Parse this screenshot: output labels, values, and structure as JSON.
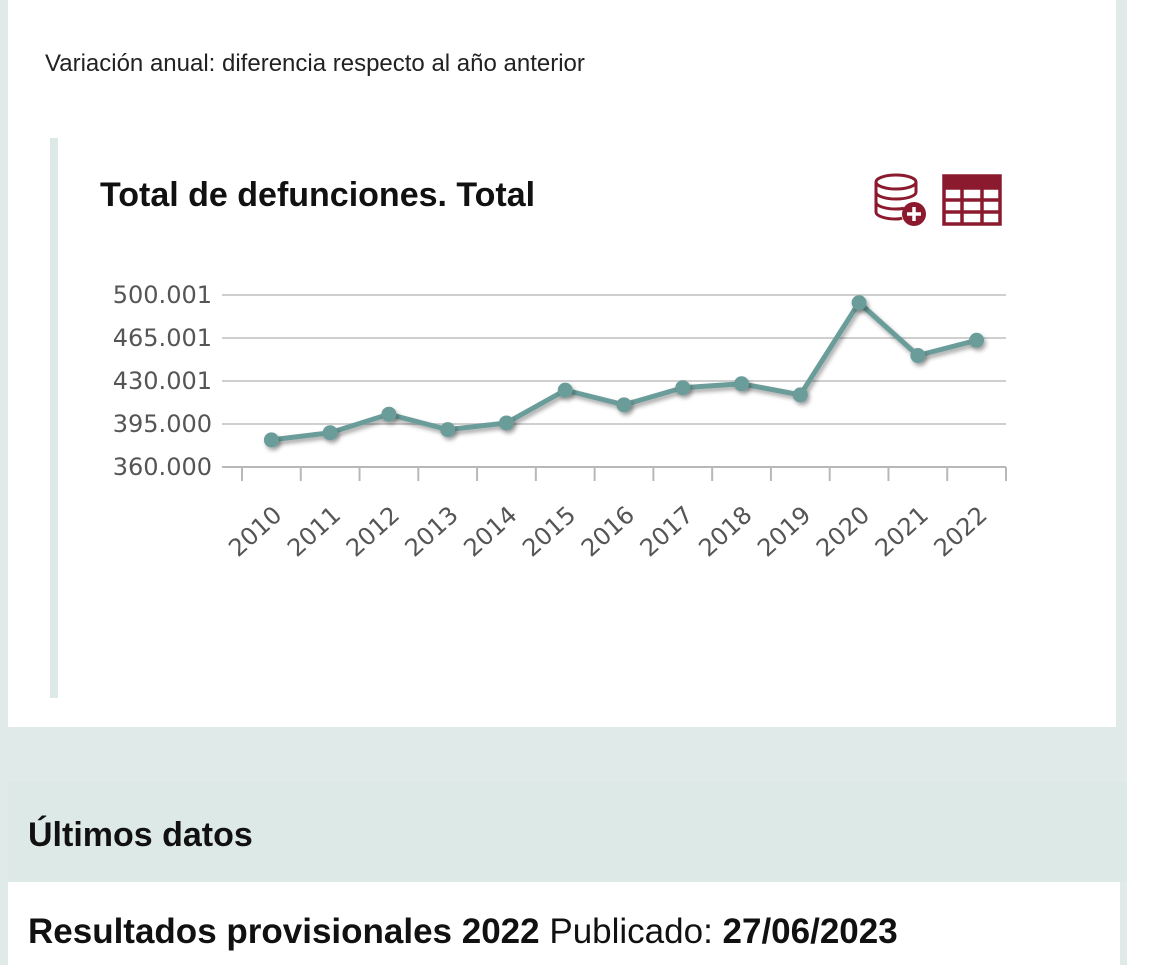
{
  "subtitle": "Variación anual: diferencia respecto al año anterior",
  "accent_color": "#8b1a2e",
  "line_color": "#6a9c9a",
  "icons": {
    "database": "database-add-icon",
    "table": "table-icon"
  },
  "chart_data": {
    "type": "line",
    "title": "Total de defunciones. Total",
    "xlabel": "",
    "ylabel": "",
    "categories": [
      "2010",
      "2011",
      "2012",
      "2013",
      "2014",
      "2015",
      "2016",
      "2017",
      "2018",
      "2019",
      "2020",
      "2021",
      "2022"
    ],
    "series": [
      {
        "values": [
          382047,
          387911,
          402950,
          390419,
          395830,
          422568,
          410611,
          424523,
          427721,
          418703,
          493776,
          450744,
          463133
        ]
      }
    ],
    "yticks": [
      "500.001",
      "465.001",
      "430.001",
      "395.000",
      "360.000"
    ],
    "ylim": [
      360000,
      500001
    ],
    "grid": true
  },
  "latest": {
    "heading": "Últimos datos",
    "result_title": "Resultados provisionales 2022",
    "published_label": "Publicado:",
    "published_date": "27/06/2023"
  }
}
